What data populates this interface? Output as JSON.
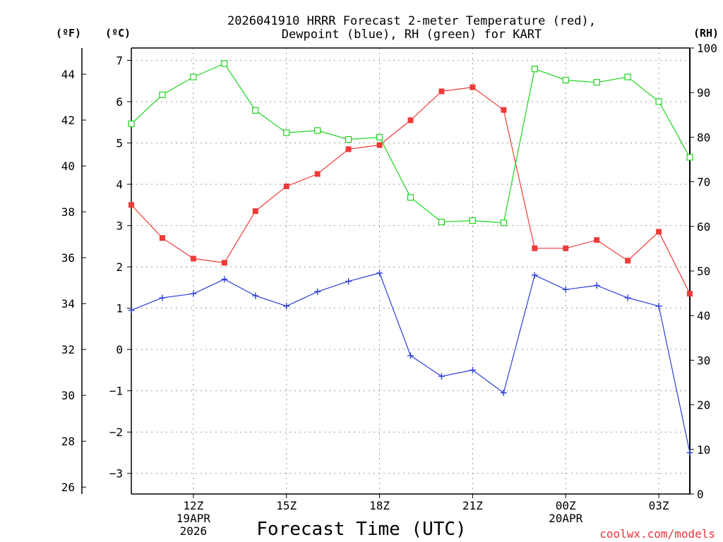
{
  "chart_data": {
    "type": "line",
    "title": [
      "2026041910 HRRR Forecast 2-meter Temperature (red),",
      "Dewpoint (blue), RH (green) for KART"
    ],
    "xlabel": "Forecast Time (UTC)",
    "units": {
      "fahrenheit": "(ºF)",
      "celsius": "(ºC)",
      "rh": "(RH)"
    },
    "x": [
      10,
      11,
      12,
      13,
      14,
      15,
      16,
      17,
      18,
      19,
      20,
      21,
      22,
      23,
      24,
      25,
      26,
      27,
      28
    ],
    "xlim": [
      10,
      28
    ],
    "x_ticks": [
      {
        "x": 12,
        "lines": [
          "12Z",
          "19APR",
          "2026"
        ]
      },
      {
        "x": 15,
        "lines": [
          "15Z"
        ]
      },
      {
        "x": 18,
        "lines": [
          "18Z"
        ]
      },
      {
        "x": 21,
        "lines": [
          "21Z"
        ]
      },
      {
        "x": 24,
        "lines": [
          "00Z",
          "20APR"
        ]
      },
      {
        "x": 27,
        "lines": [
          "03Z"
        ]
      }
    ],
    "ylim_celsius": [
      -3.5,
      7.3
    ],
    "yticks_celsius": [
      7,
      6,
      5,
      4,
      3,
      2,
      1,
      0,
      -1,
      -2,
      -3
    ],
    "yticks_fahrenheit": [
      44,
      42,
      40,
      38,
      36,
      34,
      32,
      30,
      28,
      26
    ],
    "ylim_rh": [
      0,
      100
    ],
    "yticks_rh": [
      100,
      90,
      80,
      70,
      60,
      50,
      40,
      30,
      20,
      10,
      0
    ],
    "series": [
      {
        "name": "Temperature",
        "axis": "celsius",
        "color": "#ef3a3a",
        "marker": "filled-square",
        "values": [
          3.5,
          2.7,
          2.2,
          2.1,
          3.35,
          3.95,
          4.25,
          4.85,
          4.95,
          5.55,
          6.25,
          6.35,
          5.8,
          2.45,
          2.45,
          2.65,
          2.15,
          2.85,
          1.35
        ]
      },
      {
        "name": "Dewpoint",
        "axis": "celsius",
        "color": "#2b3fd8",
        "marker": "plus",
        "values": [
          0.95,
          1.25,
          1.35,
          1.7,
          1.3,
          1.05,
          1.4,
          1.65,
          1.85,
          -0.15,
          -0.65,
          -0.5,
          -1.05,
          1.8,
          1.45,
          1.55,
          1.25,
          1.05,
          -2.5
        ]
      },
      {
        "name": "RH",
        "axis": "rh",
        "color": "#1ed41e",
        "marker": "open-square",
        "values": [
          83,
          89.5,
          93.5,
          96.5,
          86,
          81,
          81.5,
          79.5,
          80,
          66.5,
          61,
          61.3,
          60.8,
          95.3,
          92.8,
          92.3,
          93.5,
          88,
          75.5
        ]
      }
    ],
    "credit": "coolwx.com/models"
  }
}
